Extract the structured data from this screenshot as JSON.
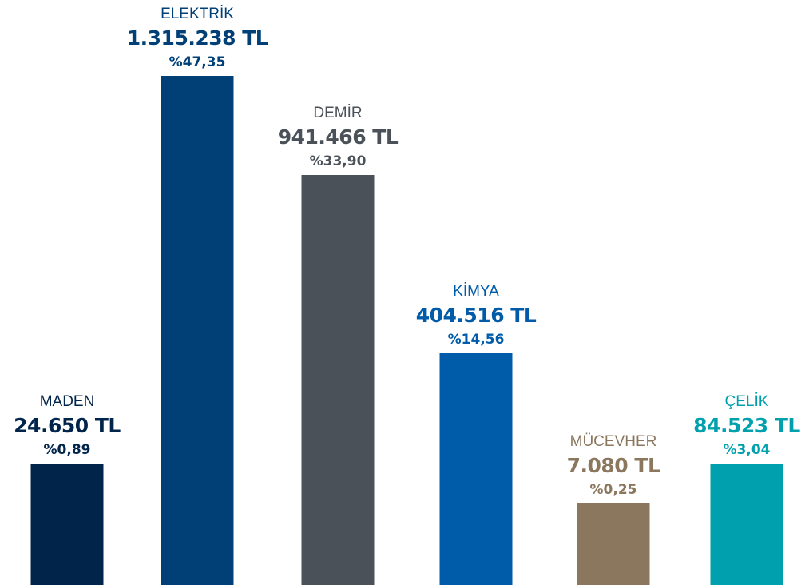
{
  "chart_data": {
    "type": "bar",
    "title": "",
    "xlabel": "",
    "ylabel": "",
    "ylim": [
      0,
      1315238
    ],
    "grid": false,
    "categories": [
      "MADEN",
      "ELEKTRİK",
      "DEMİR",
      "KİMYA",
      "MÜCEVHER",
      "ÇELİK"
    ],
    "values": [
      24650,
      1315238,
      941466,
      404516,
      7080,
      84523
    ],
    "value_labels": [
      "24.650 TL",
      "1.315.238 TL",
      "941.466 TL",
      "404.516 TL",
      "7.080 TL",
      "84.523 TL"
    ],
    "percent_labels": [
      "%0,89",
      "%47,35",
      "%33,90",
      "%14,56",
      "%0,25",
      "%3,04"
    ],
    "colors": [
      "#00244a",
      "#004077",
      "#4b5158",
      "#005ba8",
      "#8a775e",
      "#00a0ae"
    ],
    "category_label_colors": [
      "#00244a",
      "#004077",
      "#4b5158",
      "#005ba8",
      "#8a775e",
      "#00a0ae"
    ]
  }
}
